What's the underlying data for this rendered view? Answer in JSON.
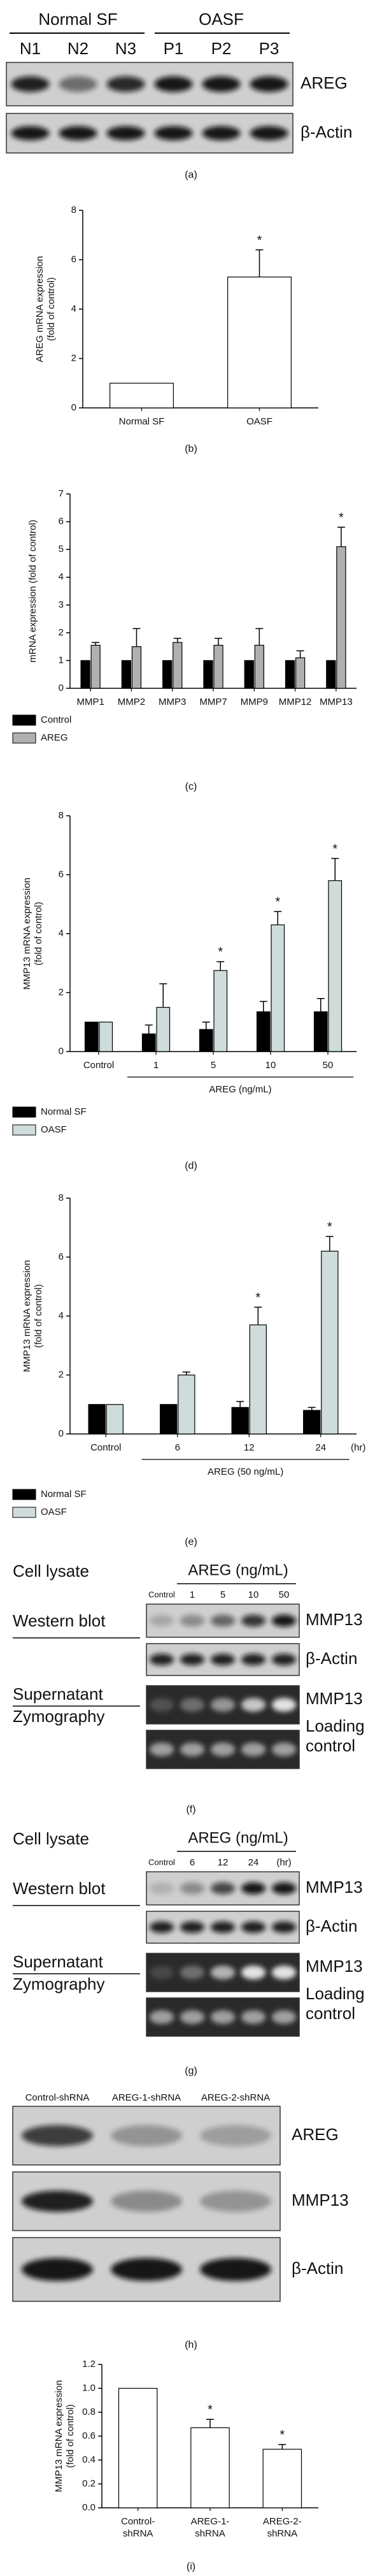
{
  "panel_labels": [
    "(a)",
    "(b)",
    "(c)",
    "(d)",
    "(e)",
    "(f)",
    "(g)",
    "(h)",
    "(i)"
  ],
  "blots": {
    "a": {
      "groups": [
        "Normal SF",
        "OASF"
      ],
      "lanes": [
        "N1",
        "N2",
        "N3",
        "P1",
        "P2",
        "P3"
      ],
      "bands": [
        "AREG",
        "β-Actin"
      ]
    },
    "f": {
      "header": "Cell lysate",
      "treatment": "AREG (ng/mL)",
      "lanes": [
        "Control",
        "1",
        "5",
        "10",
        "50"
      ],
      "rows": [
        "Western blot",
        "Supernatant",
        "Zymography"
      ],
      "bands": [
        "MMP13",
        "β-Actin",
        "MMP13",
        [
          "Loading",
          "control"
        ]
      ]
    },
    "g": {
      "header": "Cell lysate",
      "treatment": "AREG (ng/mL)",
      "lanes": [
        "Control",
        "6",
        "12",
        "24",
        "(hr)"
      ],
      "rows": [
        "Western blot",
        "Supernatant",
        "Zymography"
      ],
      "bands": [
        "MMP13",
        "β-Actin",
        "MMP13",
        [
          "Loading",
          "control"
        ]
      ]
    },
    "h": {
      "lanes": [
        "Control-shRNA",
        "AREG-1-shRNA",
        "AREG-2-shRNA"
      ],
      "bands": [
        "AREG",
        "MMP13",
        "β-Actin"
      ]
    }
  },
  "chart_data": [
    {
      "type": "bar",
      "ylabel": [
        "AREG mRNA expression",
        "(fold of control)"
      ],
      "categories": [
        "Normal SF",
        "OASF"
      ],
      "values": [
        1,
        5.3
      ],
      "errors": [
        0,
        1.1
      ],
      "annotations": [
        null,
        "*"
      ],
      "color": "#ffffff",
      "ylim": [
        0,
        8
      ],
      "yticks": [
        0,
        2,
        4,
        6,
        8
      ]
    },
    {
      "type": "bar",
      "ylabel": [
        "mRNA expression (fold of control)"
      ],
      "categories": [
        "MMP1",
        "MMP2",
        "MMP3",
        "MMP7",
        "MMP9",
        "MMP12",
        "MMP13"
      ],
      "series": [
        {
          "name": "Control",
          "color": "#000000",
          "values": [
            1,
            1,
            1,
            1,
            1,
            1,
            1
          ],
          "errors": [
            0,
            0,
            0,
            0,
            0,
            0,
            0
          ],
          "annotations": [
            null,
            null,
            null,
            null,
            null,
            null,
            null
          ]
        },
        {
          "name": "AREG",
          "color": "#b0b0b0",
          "values": [
            1.55,
            1.5,
            1.65,
            1.55,
            1.55,
            1.1,
            5.1
          ],
          "errors": [
            0.1,
            0.65,
            0.15,
            0.25,
            0.6,
            0.25,
            0.7
          ],
          "annotations": [
            null,
            null,
            null,
            null,
            null,
            null,
            "*"
          ]
        }
      ],
      "ylim": [
        0,
        7
      ],
      "yticks": [
        0,
        1,
        2,
        3,
        4,
        5,
        6,
        7
      ]
    },
    {
      "type": "bar",
      "ylabel": [
        "MMP13 mRNA expression",
        "(fold of control)"
      ],
      "xlabel": "AREG (ng/mL)",
      "categories": [
        "Control",
        "1",
        "5",
        "10",
        "50"
      ],
      "series": [
        {
          "name": "Normal SF",
          "color": "#000000",
          "values": [
            1,
            0.6,
            0.75,
            1.35,
            1.35
          ],
          "errors": [
            0,
            0.3,
            0.25,
            0.35,
            0.45
          ],
          "annotations": [
            null,
            null,
            null,
            null,
            null
          ]
        },
        {
          "name": "OASF",
          "color": "#cfdcdc",
          "values": [
            1,
            1.5,
            2.75,
            4.3,
            5.8
          ],
          "errors": [
            0,
            0.8,
            0.3,
            0.45,
            0.75
          ],
          "annotations": [
            null,
            null,
            "*",
            "*",
            "*"
          ]
        }
      ],
      "ylim": [
        0,
        8
      ],
      "yticks": [
        0,
        2,
        4,
        6,
        8
      ]
    },
    {
      "type": "bar",
      "ylabel": [
        "MMP13 mRNA expression",
        "(fold of control)"
      ],
      "xlabel": "AREG (50 ng/mL)",
      "x_unit": "(hr)",
      "categories": [
        "Control",
        "6",
        "12",
        "24"
      ],
      "series": [
        {
          "name": "Normal SF",
          "color": "#000000",
          "values": [
            1,
            1,
            0.9,
            0.8
          ],
          "errors": [
            0,
            0,
            0.2,
            0.1
          ],
          "annotations": [
            null,
            null,
            null,
            null
          ]
        },
        {
          "name": "OASF",
          "color": "#cfdcdc",
          "values": [
            1,
            2,
            3.7,
            6.2
          ],
          "errors": [
            0,
            0.1,
            0.6,
            0.5
          ],
          "annotations": [
            null,
            null,
            "*",
            "*"
          ]
        }
      ],
      "ylim": [
        0,
        8
      ],
      "yticks": [
        0,
        2,
        4,
        6,
        8
      ]
    },
    {
      "type": "bar",
      "ylabel": [
        "MMP13 mRNA expression",
        "(fold of control)"
      ],
      "categories": [
        [
          "Control-",
          "shRNA"
        ],
        [
          "AREG-1-",
          "shRNA"
        ],
        [
          "AREG-2-",
          "shRNA"
        ]
      ],
      "values": [
        1,
        0.67,
        0.49
      ],
      "errors": [
        0,
        0.07,
        0.04
      ],
      "annotations": [
        null,
        "*",
        "*"
      ],
      "color": "#ffffff",
      "ylim": [
        0,
        1.2
      ],
      "yticks": [
        {
          "value": 0,
          "label": "0.0"
        },
        0.2,
        0.4,
        0.6,
        0.8,
        {
          "value": 1,
          "label": "1.0"
        },
        1.2
      ]
    }
  ]
}
